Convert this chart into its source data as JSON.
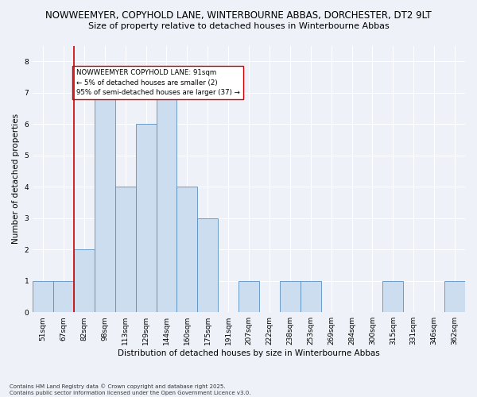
{
  "title1": "NOWWEEMYER, COPYHOLD LANE, WINTERBOURNE ABBAS, DORCHESTER, DT2 9LT",
  "title2": "Size of property relative to detached houses in Winterbourne Abbas",
  "xlabel": "Distribution of detached houses by size in Winterbourne Abbas",
  "ylabel": "Number of detached properties",
  "footer1": "Contains HM Land Registry data © Crown copyright and database right 2025.",
  "footer2": "Contains public sector information licensed under the Open Government Licence v3.0.",
  "categories": [
    "51sqm",
    "67sqm",
    "82sqm",
    "98sqm",
    "113sqm",
    "129sqm",
    "144sqm",
    "160sqm",
    "175sqm",
    "191sqm",
    "207sqm",
    "222sqm",
    "238sqm",
    "253sqm",
    "269sqm",
    "284sqm",
    "300sqm",
    "315sqm",
    "331sqm",
    "346sqm",
    "362sqm"
  ],
  "values": [
    1,
    1,
    2,
    7,
    4,
    6,
    7,
    4,
    3,
    0,
    1,
    0,
    1,
    1,
    0,
    0,
    0,
    1,
    0,
    0,
    1
  ],
  "bar_color": "#ccddf0",
  "bar_edge_color": "#5a8fc0",
  "annotation_text": "NOWWEEMYER COPYHOLD LANE: 91sqm\n← 5% of detached houses are smaller (2)\n95% of semi-detached houses are larger (37) →",
  "annotation_box_color": "#ffffff",
  "annotation_box_edge": "#cc0000",
  "property_line_color": "#cc0000",
  "ylim": [
    0,
    8.5
  ],
  "yticks": [
    0,
    1,
    2,
    3,
    4,
    5,
    6,
    7,
    8
  ],
  "bg_color": "#eef2f8",
  "plot_bg_color": "#eef2f8",
  "grid_color": "#ffffff",
  "title1_fontsize": 8.5,
  "title2_fontsize": 8.0,
  "xlabel_fontsize": 7.5,
  "ylabel_fontsize": 7.5,
  "tick_fontsize": 6.5,
  "annotation_fontsize": 6.2,
  "footer_fontsize": 5.0
}
